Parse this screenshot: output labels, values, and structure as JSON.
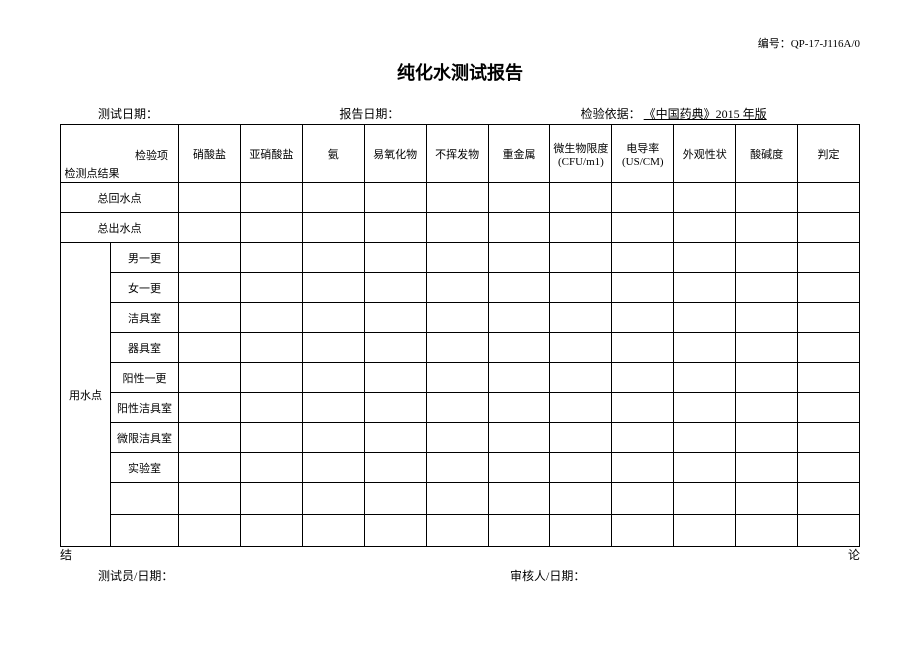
{
  "doc_number_label": "编号：QP-17-J116A/0",
  "title": "纯化水测试报告",
  "meta": {
    "test_date_label": "测试日期：",
    "report_date_label": "报告日期：",
    "basis_label": "检验依据：",
    "basis_value": "《中国药典》2015 年版"
  },
  "header": {
    "diag_top": "检验项",
    "diag_bottom": "检测点结果",
    "cols": [
      "硝酸盐",
      "亚硝酸盐",
      "氨",
      "易氧化物",
      "不挥发物",
      "重金属"
    ],
    "microbe": "微生物限度",
    "microbe_unit": "(CFU/m1)",
    "conductivity": "电导率",
    "conductivity_unit": "(US/CM)",
    "appearance": "外观性状",
    "ph": "酸碱度",
    "judgment": "判定"
  },
  "rows": {
    "total_return": "总回水点",
    "total_out": "总出水点",
    "usage_point": "用水点",
    "sub": [
      "男一更",
      "女一更",
      "洁具室",
      "器具室",
      "阳性一更",
      "阳性洁具室",
      "微限洁具室",
      "实验室"
    ]
  },
  "conclusion": {
    "left": "结",
    "right": "论"
  },
  "footer": {
    "tester": "测试员/日期：",
    "reviewer": "审核人/日期："
  },
  "style": {
    "border_color": "#000000",
    "bg_color": "#ffffff",
    "text_color": "#000000",
    "title_fontsize": 18,
    "body_fontsize": 11,
    "meta_fontsize": 12
  }
}
